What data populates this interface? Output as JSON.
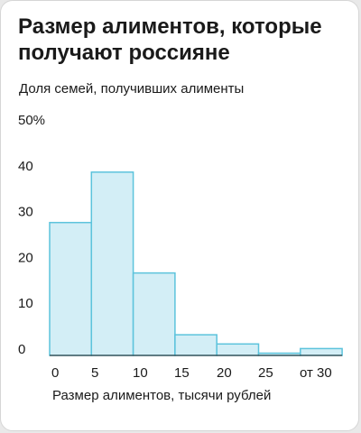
{
  "title": "Размер алиментов, которые получают россияне",
  "subtitle": "Доля семей, получивших алименты",
  "chart_data": {
    "type": "bar",
    "title": "Размер алиментов, которые получают россияне",
    "subtitle": "Доля семей, получивших алименты",
    "xlabel": "Размер алиментов, тысячи рублей",
    "ylabel": "",
    "categories": [
      "0–5",
      "5–10",
      "10–15",
      "15–20",
      "20–25",
      "25–30",
      "от 30"
    ],
    "values": [
      29,
      40,
      18,
      4.5,
      2.5,
      0.5,
      1.5
    ],
    "ylim": [
      0,
      50
    ],
    "y_ticks": [
      "0",
      "10",
      "20",
      "30",
      "40",
      "50%"
    ],
    "x_ticks": [
      "0",
      "5",
      "10",
      "15",
      "20",
      "25",
      "от 30"
    ],
    "grid": false,
    "colors": {
      "fill": "#d3eef6",
      "stroke": "#5cc3dc",
      "baseline": "#1a1a1a"
    }
  }
}
